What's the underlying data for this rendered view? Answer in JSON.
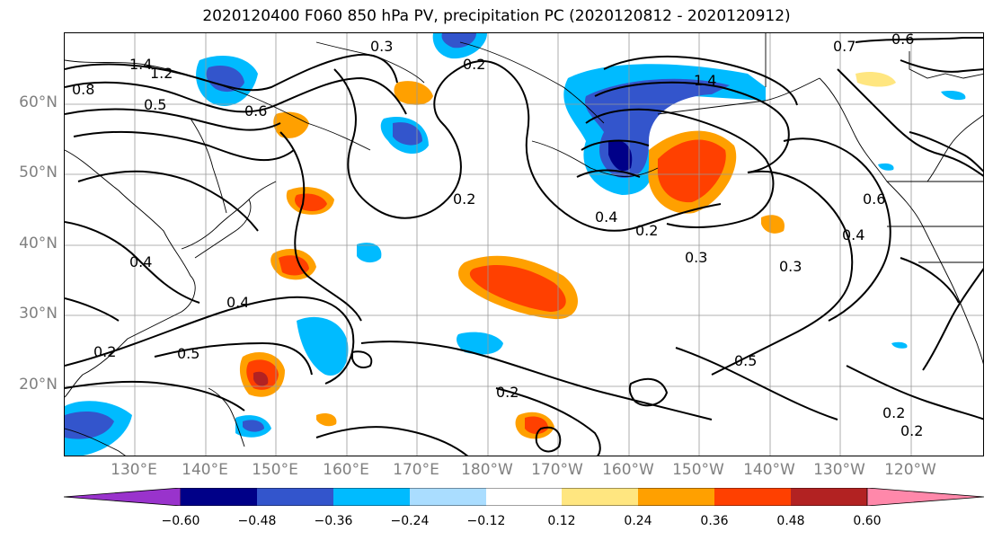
{
  "title": "2020120400 F060 850 hPa PV, precipitation PC (2020120812 - 2020120912)",
  "lat_labels": [
    "60°N",
    "50°N",
    "40°N",
    "30°N",
    "20°N"
  ],
  "lon_labels": [
    "130°E",
    "140°E",
    "150°E",
    "160°E",
    "170°E",
    "180°W",
    "170°W",
    "160°W",
    "150°W",
    "140°W",
    "130°W",
    "120°W"
  ],
  "contour_labels": [
    "1.4",
    "1.2",
    "0.8",
    "0.6",
    "0.5",
    "0.4",
    "0.3",
    "0.2",
    "0.2",
    "0.4",
    "0.5",
    "0.2",
    "0.2",
    "0.4",
    "0.3",
    "0.5",
    "0.6",
    "0.4",
    "0.3",
    "0.2",
    "0.2",
    "0.2",
    "0.7",
    "0.6",
    "1.4"
  ],
  "colorbar": {
    "colors": [
      "#9933cc",
      "#000088",
      "#3355cc",
      "#00bbff",
      "#aaddff",
      "#ffffff",
      "#ffe680",
      "#ffa000",
      "#ff4000",
      "#b22222",
      "#ff88aa"
    ],
    "tick_labels": [
      "−0.60",
      "−0.48",
      "−0.36",
      "−0.24",
      "−0.12",
      "0.12",
      "0.24",
      "0.36",
      "0.48",
      "0.60"
    ]
  }
}
